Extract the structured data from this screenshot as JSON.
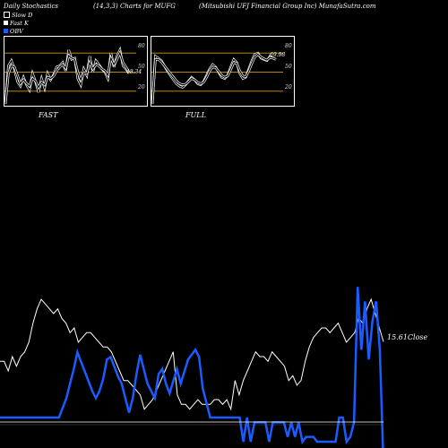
{
  "header": {
    "left": "Daily Stochastics",
    "middle": "(14,3,3) Charts for MUFG",
    "right": "(Mitsubishi UFJ Financial Group Inc) MunafaSutra.com"
  },
  "legend": [
    {
      "label": "Slow D",
      "color": "#000000"
    },
    {
      "label": "Fast K",
      "color": "#ffffff"
    },
    {
      "label": "OBV",
      "color": "#1a5cff"
    }
  ],
  "panels": [
    {
      "label": "FAST",
      "value_label": "48.34",
      "levels": [
        "80",
        "50",
        "20"
      ]
    },
    {
      "label": "FULL",
      "value_label": "69.98",
      "levels": [
        "80",
        "50",
        "20"
      ]
    }
  ],
  "close_label": "15.61Close",
  "chart_data": [
    {
      "type": "line",
      "title": "FAST",
      "ylim": [
        0,
        100
      ],
      "levels": [
        80,
        50,
        20
      ],
      "series": [
        {
          "values": [
            0,
            60,
            68,
            55,
            35,
            28,
            42,
            30,
            22,
            48,
            35,
            18,
            40,
            25,
            48,
            38,
            46,
            58,
            60,
            65,
            52,
            85,
            70,
            72,
            40,
            30,
            55,
            45,
            75,
            50,
            68,
            62,
            55,
            50,
            40,
            80,
            58,
            75,
            85,
            60,
            55,
            48
          ]
        },
        {
          "values": [
            0,
            48,
            60,
            58,
            45,
            32,
            38,
            32,
            28,
            40,
            36,
            26,
            34,
            30,
            42,
            40,
            44,
            52,
            58,
            62,
            56,
            76,
            72,
            70,
            50,
            38,
            48,
            48,
            65,
            55,
            62,
            60,
            55,
            52,
            45,
            72,
            62,
            70,
            80,
            65,
            58,
            50
          ]
        }
      ]
    },
    {
      "type": "line",
      "title": "FULL",
      "ylim": [
        0,
        100
      ],
      "levels": [
        80,
        50,
        20
      ],
      "series": [
        {
          "values": [
            0,
            75,
            72,
            68,
            60,
            52,
            45,
            38,
            32,
            28,
            26,
            30,
            36,
            42,
            38,
            32,
            30,
            35,
            45,
            55,
            62,
            58,
            50,
            42,
            40,
            45,
            58,
            70,
            65,
            48,
            40,
            42,
            55,
            68,
            78,
            80,
            72,
            70,
            68,
            75,
            72,
            70
          ]
        },
        {
          "values": [
            0,
            70,
            70,
            66,
            60,
            54,
            48,
            42,
            36,
            32,
            30,
            31,
            35,
            40,
            38,
            34,
            32,
            34,
            42,
            52,
            58,
            57,
            51,
            45,
            42,
            44,
            54,
            65,
            64,
            52,
            44,
            43,
            52,
            64,
            74,
            78,
            74,
            71,
            69,
            73,
            72,
            70
          ]
        }
      ]
    },
    {
      "type": "line",
      "title": "",
      "series": [
        {
          "values": [
            15.2,
            15.2,
            15.0,
            15.3,
            15.1,
            15.3,
            15.4,
            15.6,
            16.0,
            16.3,
            16.5,
            16.4,
            16.3,
            16.2,
            16.3,
            16.1,
            16.0,
            15.8,
            15.9,
            15.6,
            15.7,
            15.8,
            15.8,
            15.7,
            15.6,
            15.5,
            15.5,
            15.4,
            15.2,
            15.0,
            14.8,
            14.8,
            14.7,
            14.6,
            14.5,
            14.2,
            14.3,
            14.4,
            14.6,
            14.8,
            15.0,
            15.2,
            15.4,
            14.5,
            14.3,
            14.3,
            14.2,
            14.3,
            14.4,
            14.3,
            14.3,
            14.3,
            14.4,
            14.4,
            14.3,
            14.4,
            14.2,
            14.8,
            14.5,
            14.8,
            15.0,
            15.2,
            15.4,
            15.3,
            15.3,
            15.2,
            15.4,
            15.3,
            15.2,
            15.1,
            14.8,
            14.9,
            14.7,
            14.8,
            15.2,
            15.5,
            15.7,
            15.8,
            15.9,
            15.9,
            15.8,
            15.9,
            16.0,
            15.8,
            15.6,
            15.7,
            15.8,
            16.1,
            16.0,
            16.3,
            16.5,
            16.2,
            15.9,
            15.61
          ]
        }
      ]
    },
    {
      "type": "line",
      "title": "",
      "series": [
        {
          "values": [
            0,
            0,
            0,
            0,
            0,
            0,
            0,
            0,
            0,
            0,
            0,
            0,
            0,
            0,
            0,
            0,
            0,
            4,
            8,
            14,
            20,
            27,
            23,
            19,
            15,
            11,
            8,
            11,
            16,
            24,
            25,
            21,
            17,
            14,
            8,
            2,
            8,
            18,
            26,
            20,
            14,
            11,
            8,
            18,
            20,
            14,
            10,
            15,
            20,
            14,
            19,
            24,
            26,
            28,
            25,
            12,
            6,
            0,
            0,
            0,
            0,
            0,
            0,
            0,
            0,
            0,
            -10,
            0,
            -10,
            -2,
            -2,
            -2,
            -2,
            -10,
            -2,
            -2,
            -2,
            -2,
            -8,
            -2,
            -8,
            -2,
            -10,
            -8,
            -8,
            -8,
            -10,
            -10,
            -10,
            -10,
            -10,
            -10,
            0,
            0,
            -10,
            -8,
            -2,
            54,
            28,
            48,
            24,
            40,
            48,
            28,
            -20
          ]
        }
      ]
    }
  ]
}
